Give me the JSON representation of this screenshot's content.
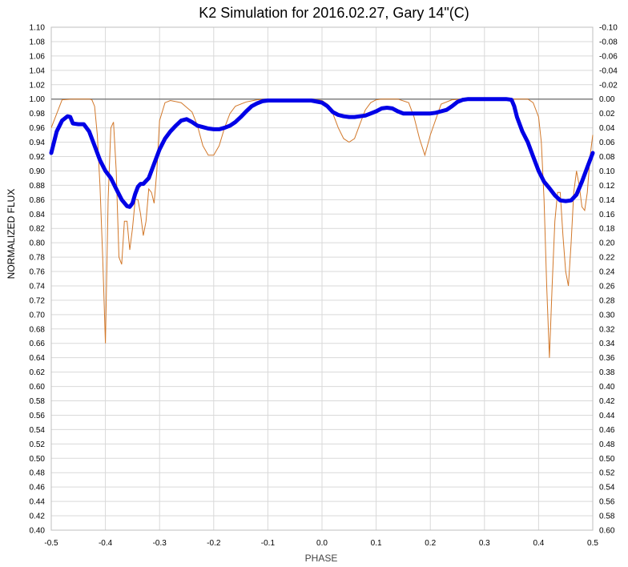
{
  "chart_data": {
    "type": "line",
    "title": "K2 Simulation for 2016.02.27, Gary 14\"(C)",
    "xlabel": "PHASE",
    "ylabel": "NORMALIZED FLUX",
    "xlim": [
      -0.5,
      0.5
    ],
    "ylim": [
      0.4,
      1.1
    ],
    "y2lim": [
      -0.1,
      0.6
    ],
    "x_ticks": [
      "-0.5",
      "-0.4",
      "-0.3",
      "-0.2",
      "-0.1",
      "0.0",
      "0.1",
      "0.2",
      "0.3",
      "0.4",
      "0.5"
    ],
    "y_ticks": [
      "0.40",
      "0.42",
      "0.44",
      "0.46",
      "0.48",
      "0.50",
      "0.52",
      "0.54",
      "0.56",
      "0.58",
      "0.60",
      "0.62",
      "0.64",
      "0.66",
      "0.68",
      "0.70",
      "0.72",
      "0.74",
      "0.76",
      "0.78",
      "0.80",
      "0.82",
      "0.84",
      "0.86",
      "0.88",
      "0.90",
      "0.92",
      "0.94",
      "0.96",
      "0.98",
      "1.00",
      "1.02",
      "1.04",
      "1.06",
      "1.08",
      "1.10"
    ],
    "y2_ticks": [
      "0.60",
      "0.58",
      "0.56",
      "0.54",
      "0.52",
      "0.50",
      "0.48",
      "0.46",
      "0.44",
      "0.42",
      "0.40",
      "0.38",
      "0.36",
      "0.34",
      "0.32",
      "0.30",
      "0.28",
      "0.26",
      "0.24",
      "0.22",
      "0.20",
      "0.18",
      "0.16",
      "0.14",
      "0.12",
      "0.10",
      "0.08",
      "0.06",
      "0.04",
      "0.02",
      "0.00",
      "-0.02",
      "-0.04",
      "-0.06",
      "-0.08",
      "-0.10"
    ],
    "grid": true,
    "reference_line": 1.0,
    "colors": {
      "model": "#0000e6",
      "components": "#d2782a",
      "grid": "#d9d9d9",
      "axis": "#808080"
    },
    "series": [
      {
        "role": "model",
        "x": [
          -0.5,
          -0.49,
          -0.48,
          -0.47,
          -0.465,
          -0.46,
          -0.45,
          -0.44,
          -0.43,
          -0.42,
          -0.41,
          -0.4,
          -0.39,
          -0.38,
          -0.37,
          -0.36,
          -0.355,
          -0.35,
          -0.345,
          -0.34,
          -0.335,
          -0.33,
          -0.32,
          -0.31,
          -0.3,
          -0.29,
          -0.28,
          -0.27,
          -0.26,
          -0.25,
          -0.24,
          -0.23,
          -0.22,
          -0.21,
          -0.2,
          -0.19,
          -0.18,
          -0.17,
          -0.16,
          -0.15,
          -0.14,
          -0.13,
          -0.12,
          -0.11,
          -0.1,
          -0.08,
          -0.06,
          -0.04,
          -0.02,
          0.0,
          0.01,
          0.02,
          0.03,
          0.04,
          0.05,
          0.06,
          0.07,
          0.08,
          0.09,
          0.1,
          0.11,
          0.12,
          0.13,
          0.14,
          0.15,
          0.16,
          0.17,
          0.18,
          0.19,
          0.2,
          0.21,
          0.22,
          0.23,
          0.24,
          0.25,
          0.26,
          0.27,
          0.28,
          0.29,
          0.3,
          0.31,
          0.32,
          0.33,
          0.34,
          0.35,
          0.355,
          0.36,
          0.37,
          0.38,
          0.39,
          0.4,
          0.41,
          0.42,
          0.43,
          0.44,
          0.45,
          0.46,
          0.47,
          0.48,
          0.49,
          0.5
        ],
        "y": [
          0.925,
          0.955,
          0.97,
          0.976,
          0.975,
          0.966,
          0.965,
          0.965,
          0.955,
          0.935,
          0.915,
          0.9,
          0.89,
          0.875,
          0.86,
          0.851,
          0.85,
          0.855,
          0.868,
          0.878,
          0.882,
          0.882,
          0.89,
          0.91,
          0.93,
          0.945,
          0.955,
          0.963,
          0.97,
          0.972,
          0.968,
          0.963,
          0.961,
          0.959,
          0.958,
          0.958,
          0.96,
          0.963,
          0.968,
          0.975,
          0.983,
          0.99,
          0.994,
          0.997,
          0.998,
          0.998,
          0.998,
          0.998,
          0.998,
          0.995,
          0.99,
          0.982,
          0.978,
          0.976,
          0.975,
          0.975,
          0.976,
          0.977,
          0.98,
          0.983,
          0.987,
          0.988,
          0.987,
          0.983,
          0.98,
          0.98,
          0.98,
          0.98,
          0.98,
          0.98,
          0.981,
          0.983,
          0.985,
          0.99,
          0.996,
          0.999,
          1.0,
          1.0,
          1.0,
          1.0,
          1.0,
          1.0,
          1.0,
          1.0,
          0.999,
          0.99,
          0.975,
          0.955,
          0.94,
          0.92,
          0.9,
          0.885,
          0.876,
          0.866,
          0.859,
          0.858,
          0.859,
          0.867,
          0.885,
          0.905,
          0.925
        ]
      },
      {
        "role": "components",
        "x": [
          -0.5,
          -0.48,
          -0.46,
          -0.44,
          -0.43,
          -0.425,
          -0.42,
          -0.415,
          -0.41,
          -0.405,
          -0.4,
          -0.395,
          -0.39,
          -0.385,
          -0.38,
          -0.375,
          -0.37,
          -0.365,
          -0.36,
          -0.355,
          -0.35,
          -0.345,
          -0.34,
          -0.335,
          -0.33,
          -0.325,
          -0.32,
          -0.315,
          -0.31,
          -0.305,
          -0.3,
          -0.29,
          -0.28,
          -0.26,
          -0.24,
          -0.23,
          -0.22,
          -0.21,
          -0.2,
          -0.19,
          -0.18,
          -0.17,
          -0.16,
          -0.14,
          -0.12,
          -0.1,
          -0.08,
          -0.06,
          -0.04,
          -0.02,
          0.0,
          0.01,
          0.02,
          0.03,
          0.04,
          0.05,
          0.06,
          0.07,
          0.08,
          0.09,
          0.1,
          0.11,
          0.12,
          0.14,
          0.16,
          0.17,
          0.18,
          0.19,
          0.2,
          0.22,
          0.24,
          0.26,
          0.28,
          0.3,
          0.32,
          0.34,
          0.36,
          0.37,
          0.38,
          0.39,
          0.4,
          0.405,
          0.41,
          0.415,
          0.42,
          0.425,
          0.43,
          0.435,
          0.44,
          0.445,
          0.45,
          0.455,
          0.46,
          0.465,
          0.47,
          0.475,
          0.48,
          0.485,
          0.49,
          0.495,
          0.5
        ],
        "y": [
          0.96,
          0.999,
          1.0,
          1.0,
          1.0,
          0.999,
          0.99,
          0.95,
          0.88,
          0.78,
          0.66,
          0.86,
          0.96,
          0.968,
          0.9,
          0.78,
          0.77,
          0.83,
          0.83,
          0.79,
          0.82,
          0.86,
          0.86,
          0.84,
          0.81,
          0.83,
          0.875,
          0.87,
          0.855,
          0.9,
          0.97,
          0.995,
          0.998,
          0.995,
          0.982,
          0.963,
          0.935,
          0.922,
          0.922,
          0.935,
          0.96,
          0.98,
          0.99,
          0.996,
          0.999,
          1.0,
          1.0,
          1.0,
          1.0,
          1.0,
          0.998,
          0.993,
          0.98,
          0.96,
          0.945,
          0.94,
          0.945,
          0.965,
          0.985,
          0.995,
          0.999,
          1.0,
          1.0,
          1.0,
          0.995,
          0.975,
          0.945,
          0.922,
          0.95,
          0.993,
          0.999,
          1.0,
          1.0,
          1.0,
          1.0,
          1.0,
          1.0,
          1.0,
          1.0,
          0.995,
          0.975,
          0.94,
          0.86,
          0.74,
          0.64,
          0.74,
          0.83,
          0.87,
          0.87,
          0.81,
          0.76,
          0.74,
          0.8,
          0.87,
          0.9,
          0.88,
          0.85,
          0.845,
          0.87,
          0.92,
          0.95
        ]
      }
    ]
  }
}
